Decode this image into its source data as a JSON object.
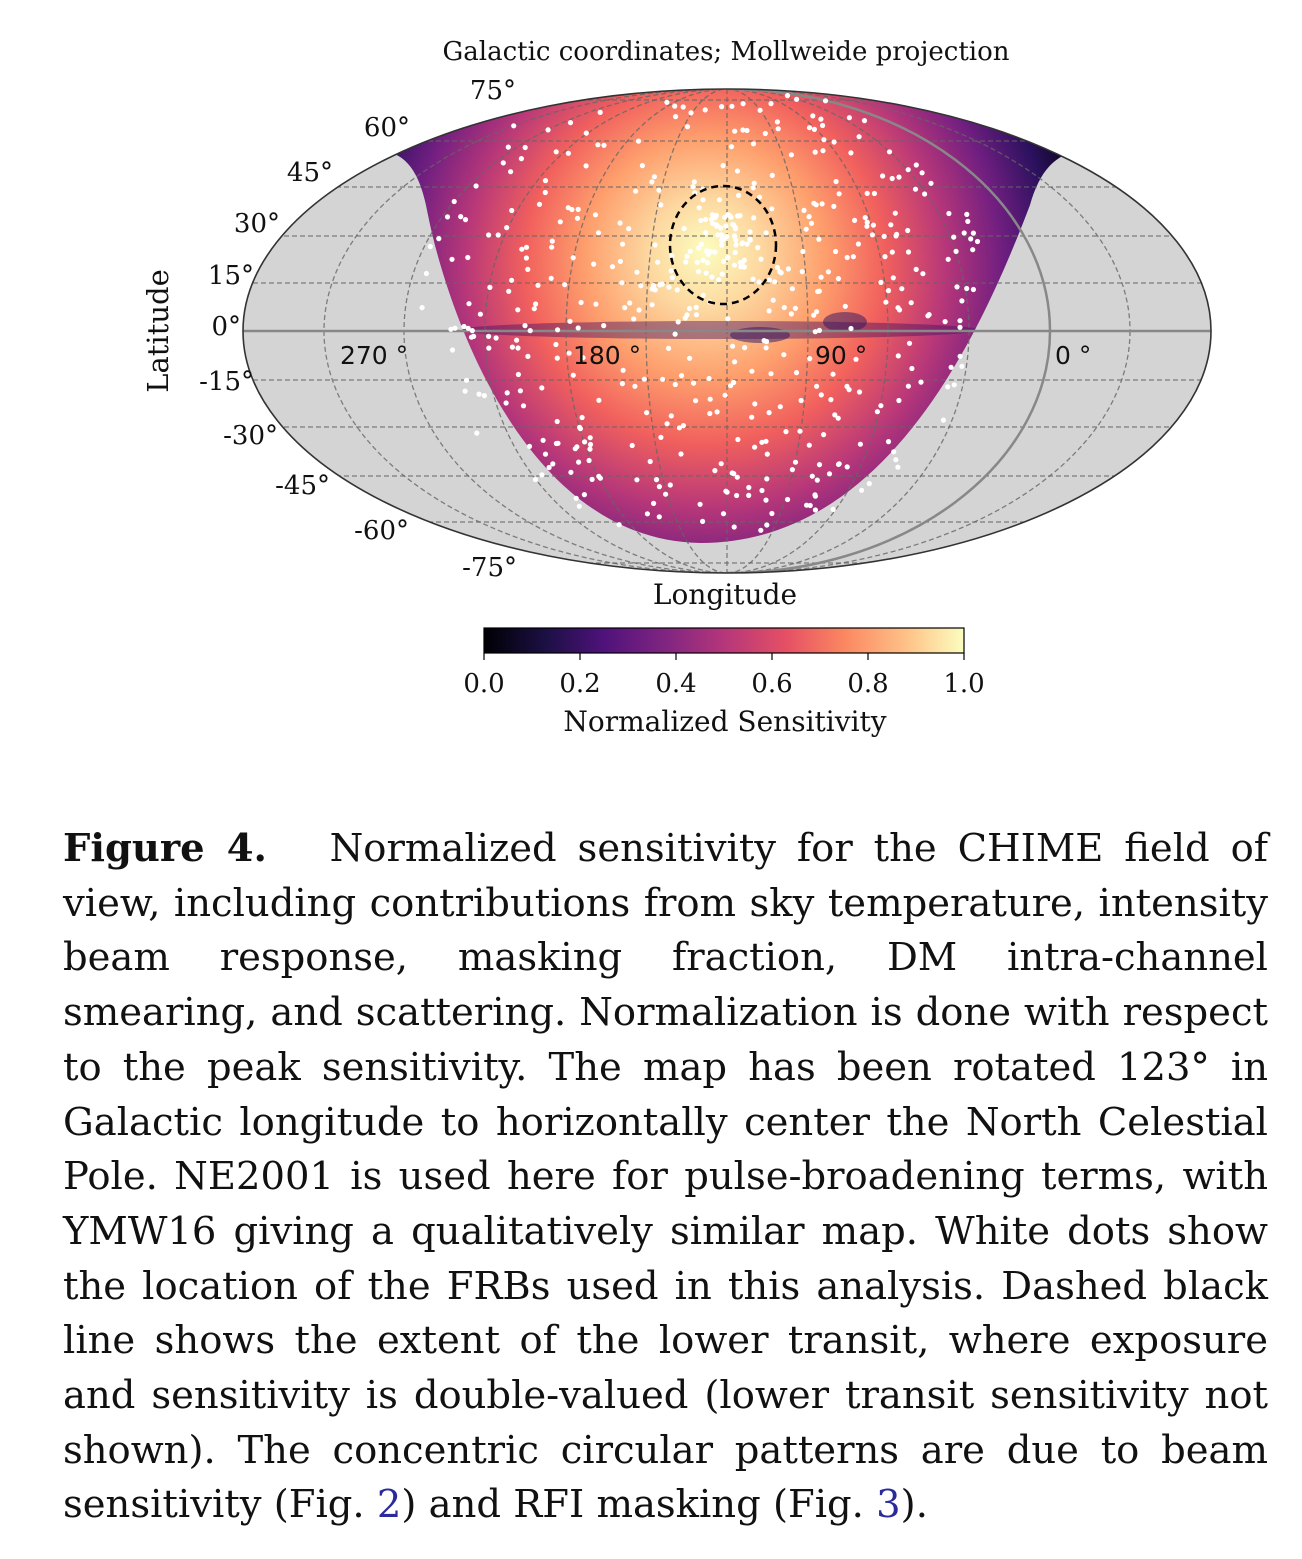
{
  "figure": {
    "title": "Galactic coordinates; Mollweide projection",
    "xlabel": "Longitude",
    "ylabel": "Latitude",
    "lat_ticks": [
      "75°",
      "60°",
      "45°",
      "30°",
      "15°",
      "0°",
      "-15°",
      "-30°",
      "-45°",
      "-60°",
      "-75°"
    ],
    "lon_ticks": [
      "270 °",
      "180 °",
      "90 °",
      "0 °"
    ],
    "colorbar": {
      "label": "Normalized Sensitivity",
      "ticks": [
        "0.0",
        "0.2",
        "0.4",
        "0.6",
        "0.8",
        "1.0"
      ],
      "colormap": "magma"
    },
    "colors": {
      "masked": "#d4d4d4",
      "frb_dots": "#ffffff"
    }
  },
  "chart_data": {
    "type": "heatmap",
    "projection": "mollweide",
    "coordinate_system": "galactic",
    "value_range": [
      0.0,
      1.0
    ],
    "frb_count_approx": 520,
    "lower_transit_circle": "dashed",
    "legend": "colorbar bottom"
  },
  "caption": {
    "label": "Figure 4.",
    "text_before_ref1": "Normalized sensitivity for the CHIME field of view, including contributions from sky temperature, intensity beam response, masking fraction, DM intra-channel smearing, and scattering. Normalization is done with respect to the peak sensitivity. The map has been rotated 123° in Galactic longitude to horizontally center the North Celestial Pole. NE2001 is used here for pulse-broadening terms, with YMW16 giving a qualitatively similar map. White dots show the location of the FRBs used in this analysis. Dashed black line shows the extent of the lower transit, where exposure and sensitivity is double-valued (lower transit sensitivity not shown). The concentric circular patterns are due to beam sensitivity (Fig.",
    "ref1": "2",
    "text_between": ") and RFI masking (Fig.",
    "ref2": "3",
    "text_after": ")."
  }
}
